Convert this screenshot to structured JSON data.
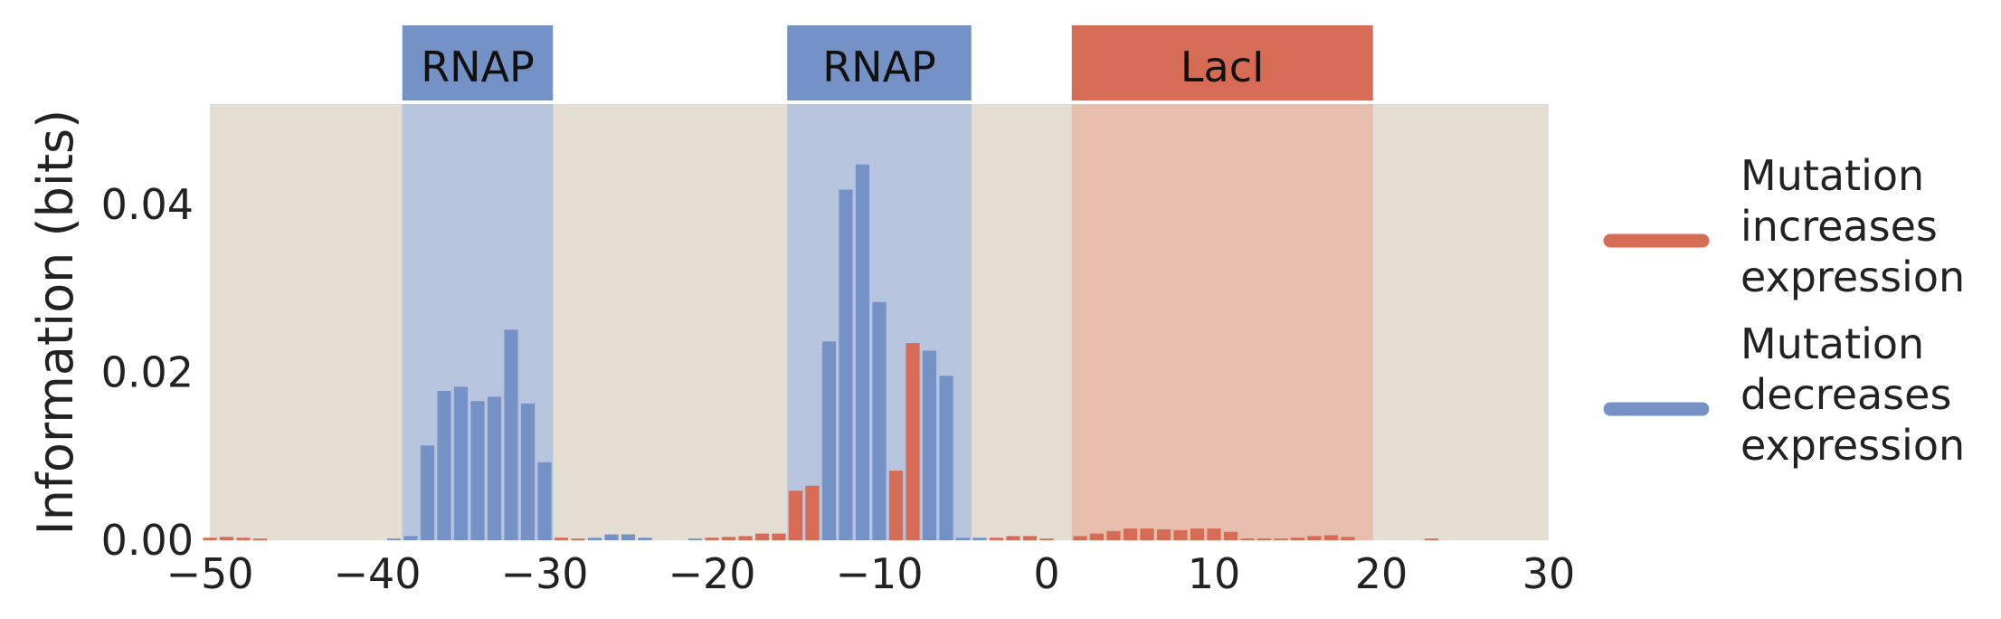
{
  "chart_data": {
    "type": "bar",
    "title": "",
    "xlabel": "",
    "ylabel": "Information (bits)",
    "xlim": [
      -50,
      30
    ],
    "ylim": [
      0,
      0.052
    ],
    "xticks": [
      "−50",
      "−40",
      "−30",
      "−20",
      "−10",
      "0",
      "10",
      "20",
      "30"
    ],
    "xtick_values": [
      -50,
      -40,
      -30,
      -20,
      -10,
      0,
      10,
      20,
      30
    ],
    "yticks": [
      "0.00",
      "0.02",
      "0.04"
    ],
    "ytick_values": [
      0,
      0.02,
      0.04
    ],
    "grid": false,
    "legend_placement": "right",
    "colors": {
      "background": "#e4ddd2",
      "increase": "#d66c55",
      "decrease": "#7592c6",
      "rnap_shade": "#b6c4de",
      "laci_shade": "#e7bdad",
      "rnap_box": "#7592c6",
      "laci_box": "#d66c55"
    },
    "regions": [
      {
        "label": "RNAP",
        "start": -38,
        "end": -30,
        "kind": "rnap"
      },
      {
        "label": "RNAP",
        "start": -15,
        "end": -5,
        "kind": "rnap"
      },
      {
        "label": "LacI",
        "start": 2,
        "end": 19,
        "kind": "laci"
      }
    ],
    "legend": [
      {
        "label": [
          "Mutation",
          "increases",
          "expression"
        ],
        "color": "#d66c55"
      },
      {
        "label": [
          "Mutation",
          "decreases",
          "expression"
        ],
        "color": "#7592c6"
      }
    ],
    "bars": [
      {
        "x": -50,
        "y": 0.0003,
        "sign": "increase"
      },
      {
        "x": -49,
        "y": 0.0004,
        "sign": "increase"
      },
      {
        "x": -48,
        "y": 0.0003,
        "sign": "increase"
      },
      {
        "x": -47,
        "y": 0.0002,
        "sign": "increase"
      },
      {
        "x": -39,
        "y": 0.0002,
        "sign": "decrease"
      },
      {
        "x": -38,
        "y": 0.0005,
        "sign": "decrease"
      },
      {
        "x": -37,
        "y": 0.0113,
        "sign": "decrease"
      },
      {
        "x": -36,
        "y": 0.0178,
        "sign": "decrease"
      },
      {
        "x": -35,
        "y": 0.0183,
        "sign": "decrease"
      },
      {
        "x": -34,
        "y": 0.0166,
        "sign": "decrease"
      },
      {
        "x": -33,
        "y": 0.0171,
        "sign": "decrease"
      },
      {
        "x": -32,
        "y": 0.0251,
        "sign": "decrease"
      },
      {
        "x": -31,
        "y": 0.0163,
        "sign": "decrease"
      },
      {
        "x": -30,
        "y": 0.0093,
        "sign": "decrease"
      },
      {
        "x": -29,
        "y": 0.0003,
        "sign": "increase"
      },
      {
        "x": -28,
        "y": 0.0002,
        "sign": "increase"
      },
      {
        "x": -27,
        "y": 0.0003,
        "sign": "decrease"
      },
      {
        "x": -26,
        "y": 0.0007,
        "sign": "decrease"
      },
      {
        "x": -25,
        "y": 0.0007,
        "sign": "decrease"
      },
      {
        "x": -24,
        "y": 0.0003,
        "sign": "decrease"
      },
      {
        "x": -21,
        "y": 0.0002,
        "sign": "decrease"
      },
      {
        "x": -20,
        "y": 0.0003,
        "sign": "increase"
      },
      {
        "x": -19,
        "y": 0.0004,
        "sign": "increase"
      },
      {
        "x": -18,
        "y": 0.0005,
        "sign": "increase"
      },
      {
        "x": -17,
        "y": 0.0008,
        "sign": "increase"
      },
      {
        "x": -16,
        "y": 0.0008,
        "sign": "increase"
      },
      {
        "x": -15,
        "y": 0.0059,
        "sign": "increase"
      },
      {
        "x": -14,
        "y": 0.0065,
        "sign": "increase"
      },
      {
        "x": -13,
        "y": 0.0237,
        "sign": "decrease"
      },
      {
        "x": -12,
        "y": 0.0418,
        "sign": "decrease"
      },
      {
        "x": -11,
        "y": 0.0448,
        "sign": "decrease"
      },
      {
        "x": -10,
        "y": 0.0284,
        "sign": "decrease"
      },
      {
        "x": -9,
        "y": 0.0083,
        "sign": "increase"
      },
      {
        "x": -8,
        "y": 0.0235,
        "sign": "increase"
      },
      {
        "x": -7,
        "y": 0.0226,
        "sign": "decrease"
      },
      {
        "x": -6,
        "y": 0.0196,
        "sign": "decrease"
      },
      {
        "x": -5,
        "y": 0.0003,
        "sign": "decrease"
      },
      {
        "x": -4,
        "y": 0.0003,
        "sign": "decrease"
      },
      {
        "x": -3,
        "y": 0.0003,
        "sign": "increase"
      },
      {
        "x": -2,
        "y": 0.0005,
        "sign": "increase"
      },
      {
        "x": -1,
        "y": 0.0005,
        "sign": "increase"
      },
      {
        "x": 0,
        "y": 0.0002,
        "sign": "increase"
      },
      {
        "x": 2,
        "y": 0.0005,
        "sign": "increase"
      },
      {
        "x": 3,
        "y": 0.0008,
        "sign": "increase"
      },
      {
        "x": 4,
        "y": 0.0011,
        "sign": "increase"
      },
      {
        "x": 5,
        "y": 0.0014,
        "sign": "increase"
      },
      {
        "x": 6,
        "y": 0.0014,
        "sign": "increase"
      },
      {
        "x": 7,
        "y": 0.0013,
        "sign": "increase"
      },
      {
        "x": 8,
        "y": 0.0012,
        "sign": "increase"
      },
      {
        "x": 9,
        "y": 0.0014,
        "sign": "increase"
      },
      {
        "x": 10,
        "y": 0.0014,
        "sign": "increase"
      },
      {
        "x": 11,
        "y": 0.001,
        "sign": "increase"
      },
      {
        "x": 12,
        "y": 0.0002,
        "sign": "increase"
      },
      {
        "x": 13,
        "y": 0.0002,
        "sign": "increase"
      },
      {
        "x": 14,
        "y": 0.0002,
        "sign": "increase"
      },
      {
        "x": 15,
        "y": 0.0003,
        "sign": "increase"
      },
      {
        "x": 16,
        "y": 0.0005,
        "sign": "increase"
      },
      {
        "x": 17,
        "y": 0.0006,
        "sign": "increase"
      },
      {
        "x": 18,
        "y": 0.0004,
        "sign": "increase"
      },
      {
        "x": 23,
        "y": 0.0002,
        "sign": "increase"
      }
    ]
  }
}
